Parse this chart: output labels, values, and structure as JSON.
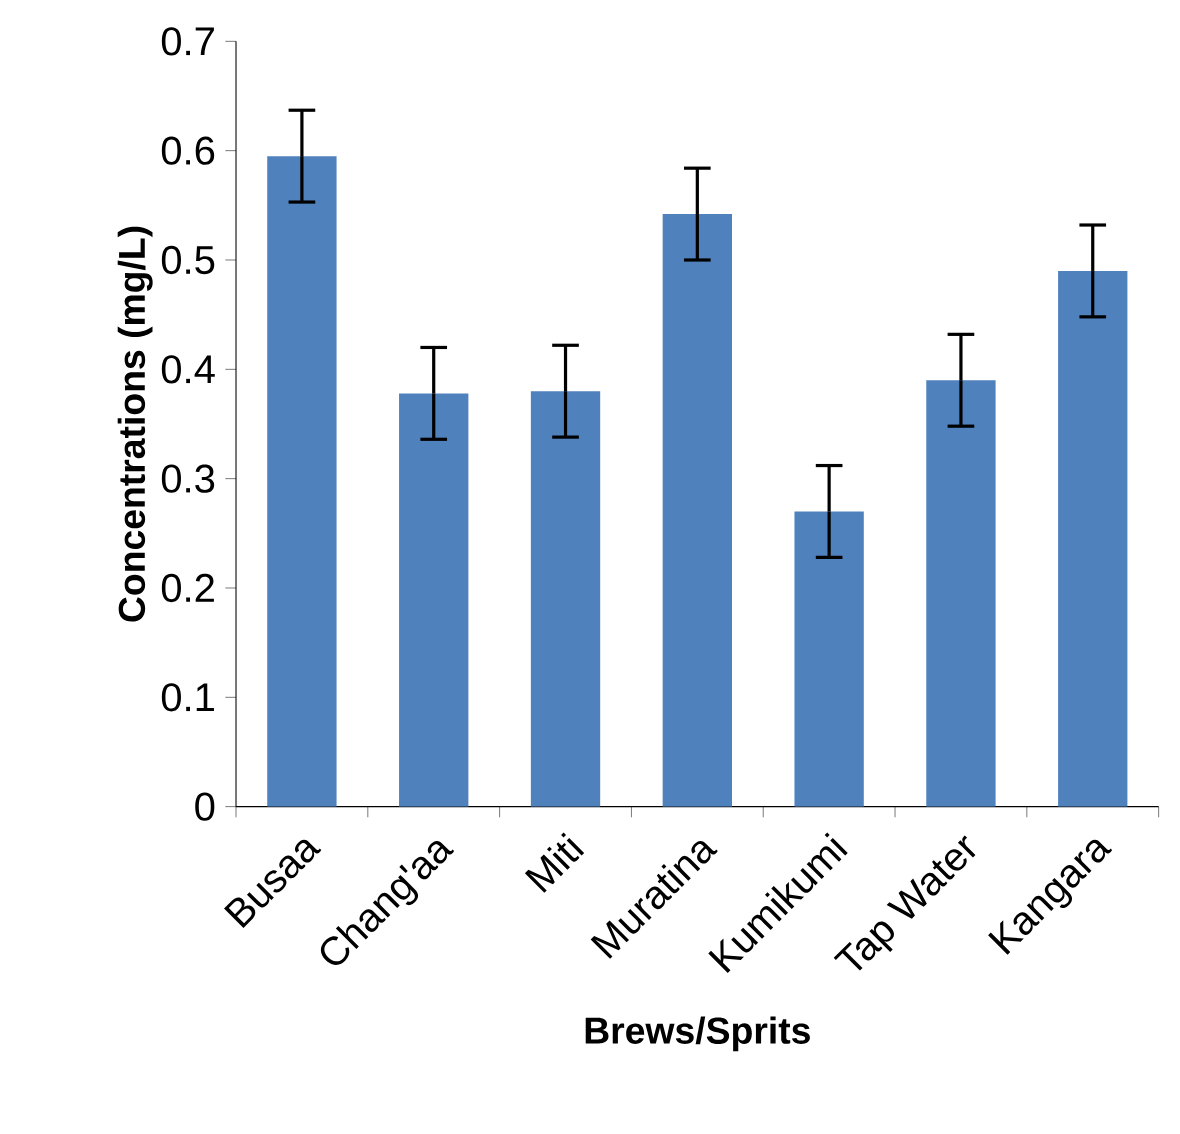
{
  "chart_data": {
    "type": "bar",
    "xlabel": "Brews/Sprits",
    "ylabel": "Concentrations (mg/L)",
    "categories": [
      "Busaa",
      "Chang'aa",
      "Miti",
      "Muratina",
      "Kumikumi",
      "Tap Water",
      "Kangara"
    ],
    "values": [
      0.595,
      0.378,
      0.38,
      0.542,
      0.27,
      0.39,
      0.49
    ],
    "errors": [
      0.042,
      0.042,
      0.042,
      0.042,
      0.042,
      0.042,
      0.042
    ],
    "color": "#4f81bd",
    "ylim": [
      0,
      0.7
    ],
    "yticks": [
      0,
      0.1,
      0.2,
      0.3,
      0.4,
      0.5,
      0.6,
      0.7
    ],
    "grid": false
  }
}
